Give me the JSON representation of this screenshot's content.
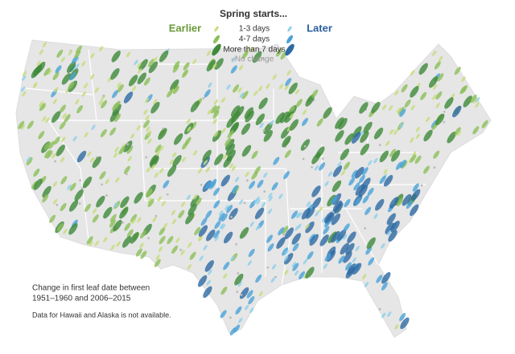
{
  "legend": {
    "title": "Spring starts...",
    "earlier": "Earlier",
    "later": "Later",
    "items": [
      "1-3 days",
      "4-7 days",
      "More than 7 days"
    ],
    "no_change": "No change"
  },
  "note": {
    "line1": "Change in first leaf date between",
    "line2": "1951–1960 and 2006–2015"
  },
  "footnote": "Data for Hawaii and Alaska is not available."
}
